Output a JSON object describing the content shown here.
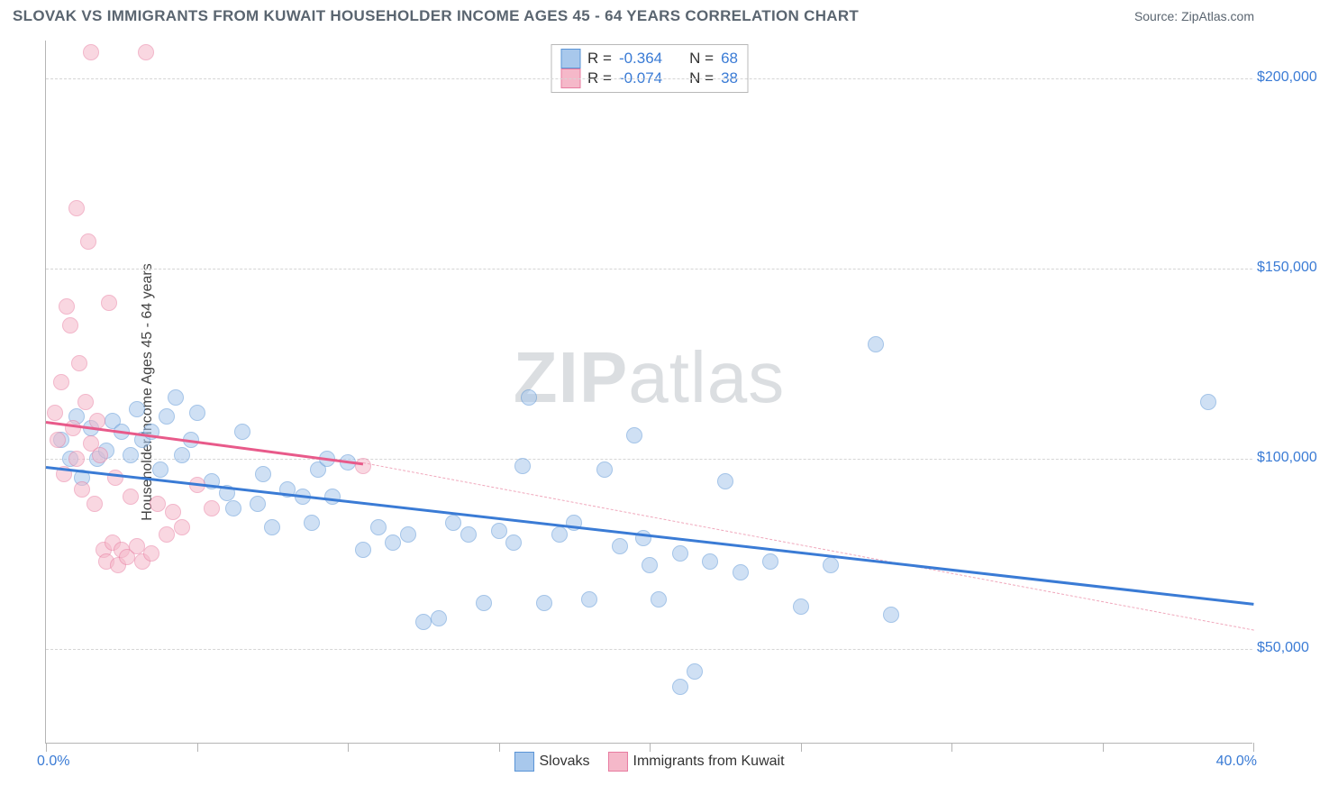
{
  "header": {
    "title": "SLOVAK VS IMMIGRANTS FROM KUWAIT HOUSEHOLDER INCOME AGES 45 - 64 YEARS CORRELATION CHART",
    "source": "Source: ZipAtlas.com"
  },
  "watermark": {
    "bold": "ZIP",
    "rest": "atlas"
  },
  "chart": {
    "type": "scatter",
    "x_axis": {
      "min_label": "0.0%",
      "max_label": "40.0%",
      "min": 0,
      "max": 40,
      "tick_positions_pct": [
        0,
        12.5,
        25,
        37.5,
        50,
        62.5,
        75,
        87.5,
        100
      ]
    },
    "y_axis": {
      "title": "Householder Income Ages 45 - 64 years",
      "min": 25000,
      "max": 210000,
      "ticks": [
        50000,
        100000,
        150000,
        200000
      ],
      "tick_labels": [
        "$50,000",
        "$100,000",
        "$150,000",
        "$200,000"
      ]
    },
    "grid_color": "#d5d5d5",
    "axis_color": "#b5b5b5",
    "background_color": "#ffffff",
    "tick_font_color": "#3a7bd5",
    "marker_radius": 9,
    "marker_border_width": 1.5,
    "series": [
      {
        "name": "Slovaks",
        "legend_label": "Slovaks",
        "fill": "#a8c8ec",
        "stroke": "#5a94d6",
        "fill_opacity": 0.55,
        "R": "-0.364",
        "N": "68",
        "trend": {
          "x1": 0,
          "y1": 98000,
          "x2": 40,
          "y2": 62000,
          "color": "#3a7bd5",
          "width": 3,
          "dash": "solid"
        },
        "points": [
          [
            0.5,
            105000
          ],
          [
            0.8,
            100000
          ],
          [
            1.0,
            111000
          ],
          [
            1.2,
            95000
          ],
          [
            1.5,
            108000
          ],
          [
            1.7,
            100000
          ],
          [
            2.0,
            102000
          ],
          [
            2.2,
            110000
          ],
          [
            2.5,
            107000
          ],
          [
            2.8,
            101000
          ],
          [
            3.0,
            113000
          ],
          [
            3.2,
            105000
          ],
          [
            3.5,
            107000
          ],
          [
            3.8,
            97000
          ],
          [
            4.0,
            111000
          ],
          [
            4.3,
            116000
          ],
          [
            4.5,
            101000
          ],
          [
            4.8,
            105000
          ],
          [
            5.0,
            112000
          ],
          [
            5.5,
            94000
          ],
          [
            6.0,
            91000
          ],
          [
            6.5,
            107000
          ],
          [
            7.0,
            88000
          ],
          [
            7.2,
            96000
          ],
          [
            7.5,
            82000
          ],
          [
            8.0,
            92000
          ],
          [
            8.5,
            90000
          ],
          [
            8.8,
            83000
          ],
          [
            9.0,
            97000
          ],
          [
            9.3,
            100000
          ],
          [
            9.5,
            90000
          ],
          [
            10.0,
            99000
          ],
          [
            10.5,
            76000
          ],
          [
            11.0,
            82000
          ],
          [
            11.5,
            78000
          ],
          [
            12.0,
            80000
          ],
          [
            12.5,
            57000
          ],
          [
            13.0,
            58000
          ],
          [
            13.5,
            83000
          ],
          [
            14.0,
            80000
          ],
          [
            14.5,
            62000
          ],
          [
            15.0,
            81000
          ],
          [
            15.5,
            78000
          ],
          [
            15.8,
            98000
          ],
          [
            16.0,
            116000
          ],
          [
            16.5,
            62000
          ],
          [
            17.0,
            80000
          ],
          [
            17.5,
            83000
          ],
          [
            18.0,
            63000
          ],
          [
            18.5,
            97000
          ],
          [
            19.0,
            77000
          ],
          [
            19.5,
            106000
          ],
          [
            19.8,
            79000
          ],
          [
            20.0,
            72000
          ],
          [
            20.3,
            63000
          ],
          [
            21.0,
            75000
          ],
          [
            21.0,
            40000
          ],
          [
            21.5,
            44000
          ],
          [
            22.0,
            73000
          ],
          [
            22.5,
            94000
          ],
          [
            23.0,
            70000
          ],
          [
            24.0,
            73000
          ],
          [
            25.0,
            61000
          ],
          [
            26.0,
            72000
          ],
          [
            27.5,
            130000
          ],
          [
            28.0,
            59000
          ],
          [
            38.5,
            115000
          ],
          [
            6.2,
            87000
          ]
        ]
      },
      {
        "name": "Immigrants from Kuwait",
        "legend_label": "Immigrants from Kuwait",
        "fill": "#f5b8c9",
        "stroke": "#e87ca0",
        "fill_opacity": 0.55,
        "R": "-0.074",
        "N": "38",
        "trend_solid": {
          "x1": 0,
          "y1": 110000,
          "x2": 10.5,
          "y2": 99000,
          "color": "#e85a8a",
          "width": 3
        },
        "trend_dashed": {
          "x1": 10.5,
          "y1": 99000,
          "x2": 40,
          "y2": 55000,
          "color": "#f0a8bc",
          "width": 1.5
        },
        "points": [
          [
            0.3,
            112000
          ],
          [
            0.4,
            105000
          ],
          [
            0.5,
            120000
          ],
          [
            0.6,
            96000
          ],
          [
            0.7,
            140000
          ],
          [
            0.8,
            135000
          ],
          [
            0.9,
            108000
          ],
          [
            1.0,
            166000
          ],
          [
            1.0,
            100000
          ],
          [
            1.1,
            125000
          ],
          [
            1.2,
            92000
          ],
          [
            1.3,
            115000
          ],
          [
            1.4,
            157000
          ],
          [
            1.5,
            104000
          ],
          [
            1.5,
            207000
          ],
          [
            1.6,
            88000
          ],
          [
            1.7,
            110000
          ],
          [
            1.8,
            101000
          ],
          [
            1.9,
            76000
          ],
          [
            2.0,
            73000
          ],
          [
            2.1,
            141000
          ],
          [
            2.2,
            78000
          ],
          [
            2.3,
            95000
          ],
          [
            2.4,
            72000
          ],
          [
            2.5,
            76000
          ],
          [
            2.7,
            74000
          ],
          [
            2.8,
            90000
          ],
          [
            3.0,
            77000
          ],
          [
            3.2,
            73000
          ],
          [
            3.3,
            207000
          ],
          [
            3.5,
            75000
          ],
          [
            3.7,
            88000
          ],
          [
            4.0,
            80000
          ],
          [
            4.2,
            86000
          ],
          [
            4.5,
            82000
          ],
          [
            5.0,
            93000
          ],
          [
            5.5,
            87000
          ],
          [
            10.5,
            98000
          ]
        ]
      }
    ],
    "legend_top": {
      "rows": [
        {
          "swatch_fill": "#a8c8ec",
          "swatch_stroke": "#5a94d6",
          "R_label": "R =",
          "R_value": "-0.364",
          "N_label": "N =",
          "N_value": "68"
        },
        {
          "swatch_fill": "#f5b8c9",
          "swatch_stroke": "#e87ca0",
          "R_label": "R =",
          "R_value": "-0.074",
          "N_label": "N =",
          "N_value": "38"
        }
      ]
    }
  }
}
